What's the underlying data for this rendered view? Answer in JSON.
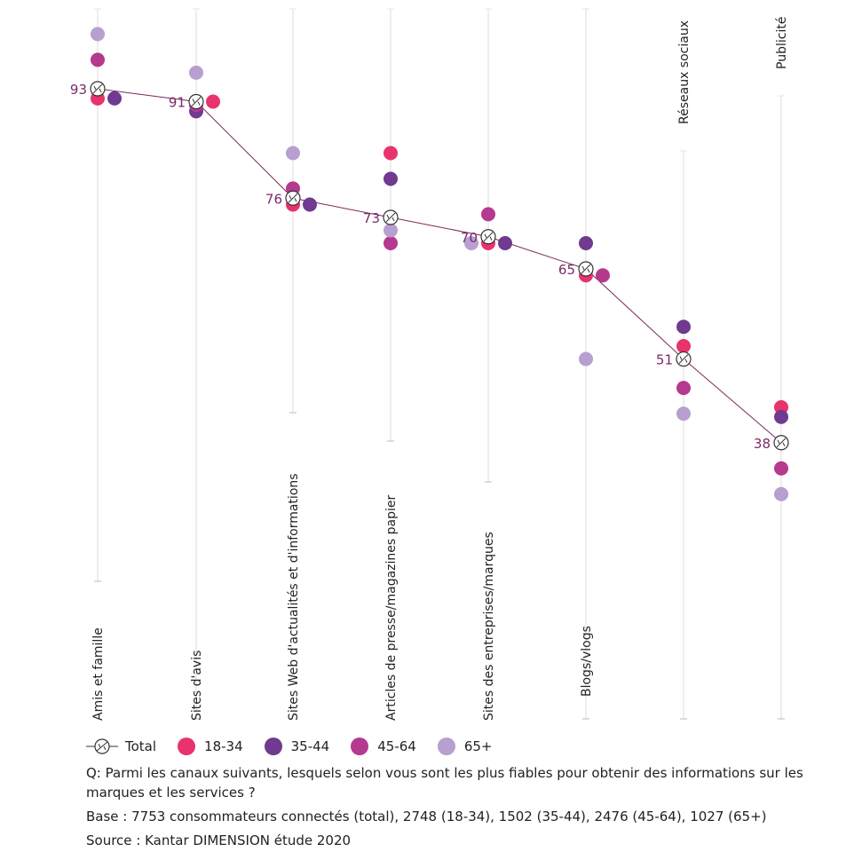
{
  "chart_data": {
    "type": "scatter",
    "categories": [
      "Amis et famille",
      "Sites d'avis",
      "Sites Web d'actualités et d'informations",
      "Articles de presse/magazines papier",
      "Sites des entreprises/marques",
      "Blogs/vlogs",
      "Réseaux sociaux",
      "Publicité"
    ],
    "total": {
      "name": "Total",
      "values": [
        93,
        91,
        76,
        73,
        70,
        65,
        51,
        38
      ]
    },
    "series": [
      {
        "name": "18-34",
        "color": "#e8336d",
        "values": [
          91.5,
          91,
          75,
          83,
          69,
          64,
          53,
          43.5
        ]
      },
      {
        "name": "35-44",
        "color": "#6f3a8f",
        "values": [
          91.5,
          89.5,
          75,
          79,
          69,
          69,
          56,
          42
        ]
      },
      {
        "name": "45-64",
        "color": "#b5398f",
        "values": [
          97.5,
          90.5,
          77.5,
          69,
          73.5,
          64,
          46.5,
          34
        ]
      },
      {
        "name": "65+",
        "color": "#b79fd0",
        "values": [
          101.5,
          95.5,
          83,
          71,
          69,
          51,
          42.5,
          30
        ]
      }
    ],
    "label_side": [
      "left",
      "left",
      "left",
      "left",
      "left",
      "left",
      "left",
      "left"
    ],
    "total_line_color": "#7a2a5a",
    "total_label_color": "#7b2a6a"
  },
  "legend": {
    "total_label": "Total",
    "items": [
      "18-34",
      "35-44",
      "45-64",
      "65+"
    ]
  },
  "notes": {
    "question": "Q: Parmi les canaux suivants, lesquels selon vous sont les plus fiables pour obtenir des informations sur les marques et les services ?",
    "base": "Base : 7753 consommateurs connectés (total), 2748 (18-34), 1502 (35-44), 2476 (45-64), 1027 (65+)",
    "source": "Source : Kantar DIMENSION étude 2020"
  }
}
